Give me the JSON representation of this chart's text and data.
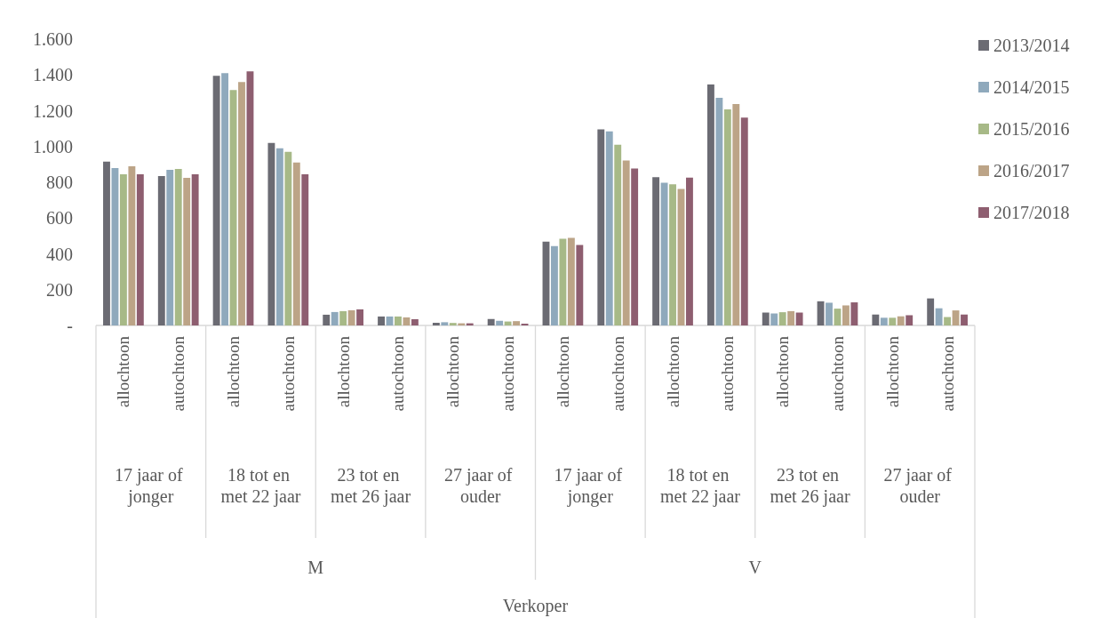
{
  "chart_data": {
    "type": "bar",
    "categories": [
      "allochtoon",
      "autochtoon",
      "allochtoon",
      "autochtoon",
      "allochtoon",
      "autochtoon",
      "allochtoon",
      "autochtoon",
      "allochtoon",
      "autochtoon",
      "allochtoon",
      "autochtoon",
      "allochtoon",
      "autochtoon",
      "allochtoon",
      "autochtoon"
    ],
    "annotations": [
      "17 jaar of jonger",
      "18 tot en met 22 jaar",
      "23 tot en met 26 jaar",
      "27 jaar of ouder",
      "17 jaar of jonger",
      "18 tot en met 22 jaar",
      "23 tot en met 26 jaar",
      "27 jaar of ouder",
      "M",
      "V",
      "Verkoper"
    ],
    "series": [
      {
        "name": "2013/2014",
        "color": "#6b6b73",
        "values": [
          915,
          835,
          1395,
          1020,
          60,
          50,
          15,
          36,
          468,
          1096,
          828,
          1346,
          72,
          135,
          61,
          151
        ]
      },
      {
        "name": "2014/2015",
        "color": "#8fa9bc",
        "values": [
          880,
          870,
          1410,
          990,
          75,
          50,
          18,
          26,
          444,
          1084,
          798,
          1272,
          67,
          127,
          43,
          96
        ]
      },
      {
        "name": "2015/2016",
        "color": "#a7b987",
        "values": [
          845,
          875,
          1315,
          970,
          80,
          50,
          14,
          22,
          485,
          1010,
          789,
          1207,
          74,
          94,
          43,
          47
        ]
      },
      {
        "name": "2016/2017",
        "color": "#bca487",
        "values": [
          890,
          825,
          1360,
          910,
          85,
          45,
          12,
          24,
          489,
          922,
          763,
          1237,
          80,
          112,
          51,
          84
        ]
      },
      {
        "name": "2017/2018",
        "color": "#8e5e70",
        "values": [
          845,
          845,
          1420,
          845,
          90,
          35,
          12,
          10,
          450,
          877,
          826,
          1162,
          72,
          129,
          57,
          61
        ]
      }
    ],
    "ylim": [
      0,
      1600
    ],
    "yticks": [
      {
        "value": 0,
        "label": "-"
      },
      200,
      400,
      600,
      800,
      {
        "value": 1000,
        "label": "1.000"
      },
      {
        "value": 1200,
        "label": "1.200"
      },
      {
        "value": 1400,
        "label": "1.400"
      },
      {
        "value": 1600,
        "label": "1.600"
      }
    ],
    "grid": false,
    "legend": "right"
  }
}
